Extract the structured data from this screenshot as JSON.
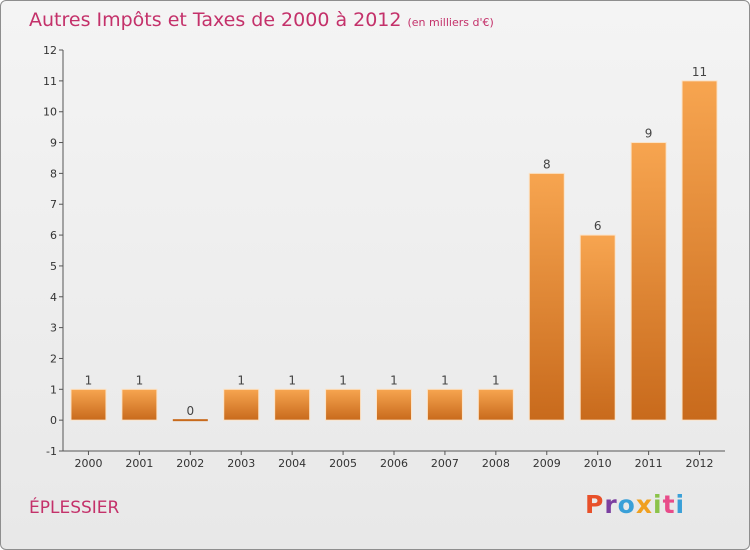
{
  "header": {
    "title": "Autres Impôts et Taxes de 2000 à 2012",
    "unit": "(en milliers d'€)"
  },
  "footer": {
    "commune": "ÉPLESSIER",
    "brand": "Proxiti"
  },
  "colors": {
    "title": "#c4316a",
    "bar_top": "#f7a550",
    "bar_bottom": "#c86a1c",
    "brand_letters": [
      "#e8502a",
      "#7b3fa0",
      "#3aa0d8",
      "#f0a020",
      "#8bc34a",
      "#e84c8a",
      "#3aa0d8"
    ]
  },
  "chart_data": {
    "type": "bar",
    "title": "Autres Impôts et Taxes de 2000 à 2012",
    "categories": [
      "2000",
      "2001",
      "2002",
      "2003",
      "2004",
      "2005",
      "2006",
      "2007",
      "2008",
      "2009",
      "2010",
      "2011",
      "2012"
    ],
    "values": [
      1,
      1,
      0,
      1,
      1,
      1,
      1,
      1,
      1,
      8,
      6,
      9,
      11
    ],
    "ylim": [
      -1,
      12
    ],
    "yticks": [
      -1,
      0,
      1,
      2,
      3,
      4,
      5,
      6,
      7,
      8,
      9,
      10,
      11,
      12
    ],
    "grid": false
  }
}
